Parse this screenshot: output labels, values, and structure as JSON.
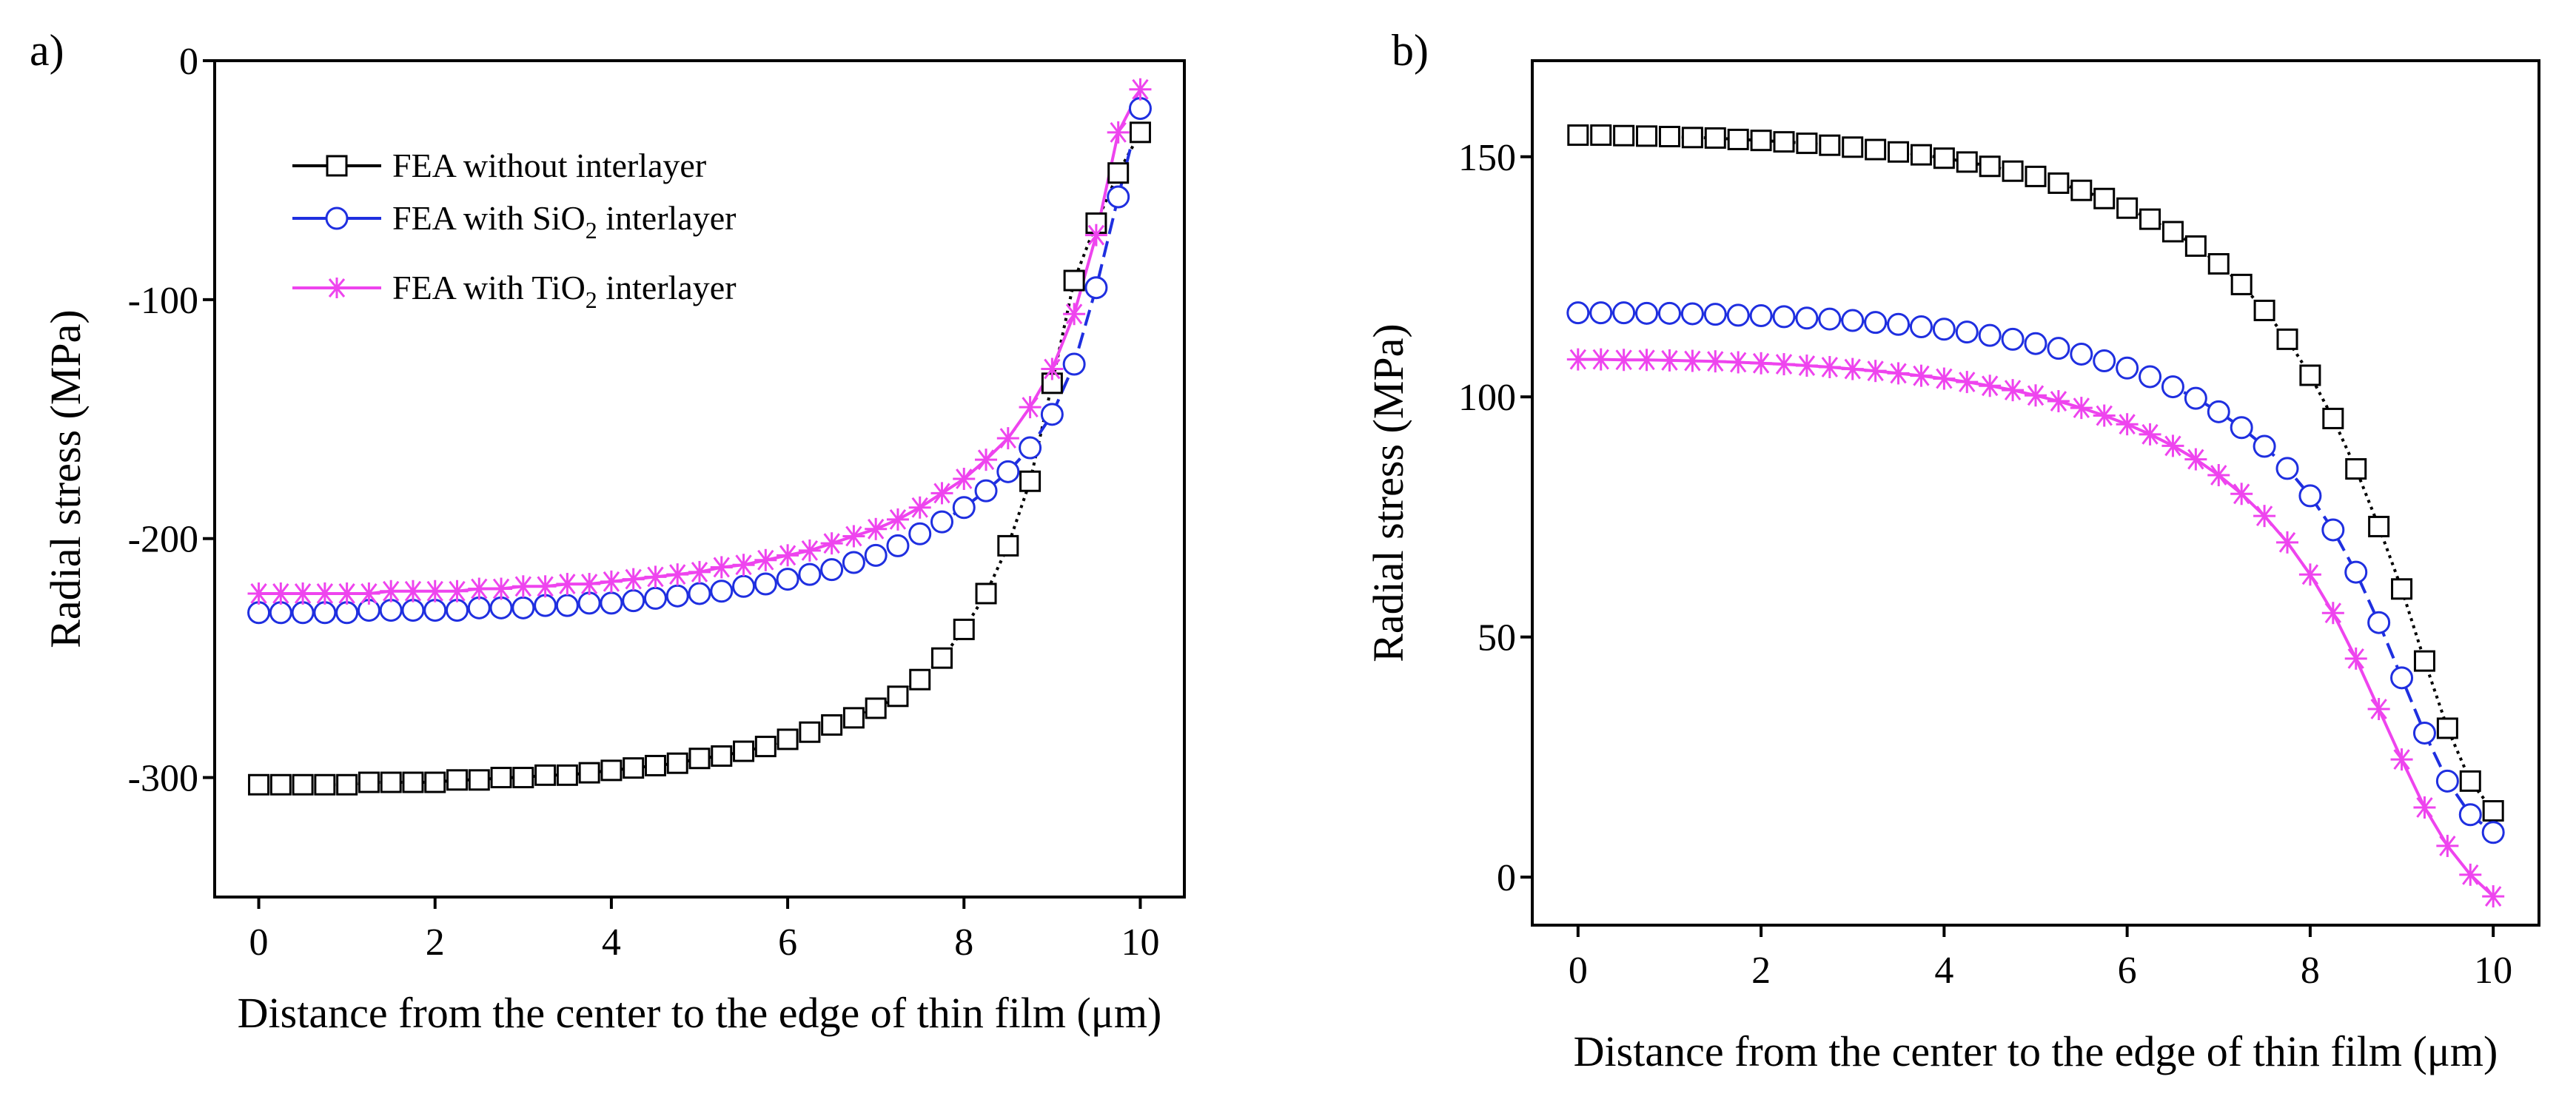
{
  "chart_data": [
    {
      "type": "line",
      "panel_label": "a)",
      "xlabel": "Distance from the center to the edge of thin film (μm)",
      "ylabel": "Radial stress (MPa)",
      "xlim": [
        -0.5,
        10.5
      ],
      "ylim": [
        -350,
        0
      ],
      "xticks": [
        0,
        2,
        4,
        6,
        8,
        10
      ],
      "yticks": [
        0,
        -100,
        -200,
        -300
      ],
      "xtick_labels": [
        "0",
        "2",
        "4",
        "6",
        "8",
        "10"
      ],
      "ytick_labels": [
        "0",
        "-100",
        "-200",
        "-300"
      ],
      "legend_position": "top-left",
      "x": [
        0,
        0.25,
        0.5,
        0.75,
        1,
        1.25,
        1.5,
        1.75,
        2,
        2.25,
        2.5,
        2.75,
        3,
        3.25,
        3.5,
        3.75,
        4,
        4.25,
        4.5,
        4.75,
        5,
        5.25,
        5.5,
        5.75,
        6,
        6.25,
        6.5,
        6.75,
        7,
        7.25,
        7.5,
        7.75,
        8,
        8.25,
        8.5,
        8.75,
        9,
        9.25,
        9.5,
        9.75,
        10
      ],
      "series": [
        {
          "name": "FEA without interlayer",
          "color": "#000000",
          "marker": "square",
          "line_style": "dotted",
          "values": [
            -303,
            -303,
            -303,
            -303,
            -303,
            -302,
            -302,
            -302,
            -302,
            -301,
            -301,
            -300,
            -300,
            -299,
            -299,
            -298,
            -297,
            -296,
            -295,
            -294,
            -292,
            -291,
            -289,
            -287,
            -284,
            -281,
            -278,
            -275,
            -271,
            -266,
            -259,
            -250,
            -238,
            -223,
            -203,
            -176,
            -135,
            -92,
            -68,
            -47,
            -30
          ]
        },
        {
          "name": "FEA with SiO",
          "name_sub": "2",
          "name_suffix": " interlayer",
          "color": "#1f2fe0",
          "marker": "circle",
          "line_style": "dashed",
          "values": [
            -231,
            -231,
            -231,
            -231,
            -231,
            -230,
            -230,
            -230,
            -230,
            -230,
            -229,
            -229,
            -229,
            -228,
            -228,
            -227,
            -227,
            -226,
            -225,
            -224,
            -223,
            -222,
            -220,
            -219,
            -217,
            -215,
            -213,
            -210,
            -207,
            -203,
            -198,
            -193,
            -187,
            -180,
            -172,
            -162,
            -148,
            -127,
            -95,
            -57,
            -20
          ]
        },
        {
          "name": "FEA with TiO",
          "name_sub": "2",
          "name_suffix": " interlayer",
          "color": "#ee44ee",
          "marker": "asterisk",
          "line_style": "solid",
          "values": [
            -223,
            -223,
            -223,
            -223,
            -223,
            -223,
            -222,
            -222,
            -222,
            -222,
            -221,
            -221,
            -220,
            -220,
            -219,
            -219,
            -218,
            -217,
            -216,
            -215,
            -214,
            -212,
            -211,
            -209,
            -207,
            -205,
            -202,
            -199,
            -196,
            -192,
            -187,
            -181,
            -175,
            -167,
            -158,
            -145,
            -129,
            -106,
            -73,
            -30,
            -12
          ]
        }
      ]
    },
    {
      "type": "line",
      "panel_label": "b)",
      "xlabel": "Distance from the center to the edge of thin film (μm)",
      "ylabel": "Radial stress (MPa)",
      "xlim": [
        -0.5,
        10.5
      ],
      "ylim": [
        -10,
        170
      ],
      "xticks": [
        0,
        2,
        4,
        6,
        8,
        10
      ],
      "yticks": [
        0,
        50,
        100,
        150
      ],
      "xtick_labels": [
        "0",
        "2",
        "4",
        "6",
        "8",
        "10"
      ],
      "ytick_labels": [
        "0",
        "50",
        "100",
        "150"
      ],
      "x": [
        0,
        0.25,
        0.5,
        0.75,
        1,
        1.25,
        1.5,
        1.75,
        2,
        2.25,
        2.5,
        2.75,
        3,
        3.25,
        3.5,
        3.75,
        4,
        4.25,
        4.5,
        4.75,
        5,
        5.25,
        5.5,
        5.75,
        6,
        6.25,
        6.5,
        6.75,
        7,
        7.25,
        7.5,
        7.75,
        8,
        8.25,
        8.5,
        8.75,
        9,
        9.25,
        9.5,
        9.75,
        10
      ],
      "series": [
        {
          "name": "FEA without interlayer",
          "color": "#000000",
          "marker": "square",
          "line_style": "dotted",
          "values": [
            154.5,
            154.5,
            154.4,
            154.3,
            154.2,
            154.0,
            153.9,
            153.6,
            153.4,
            153.1,
            152.8,
            152.4,
            152.0,
            151.5,
            151.0,
            150.4,
            149.7,
            148.9,
            148.0,
            147.0,
            145.9,
            144.5,
            143.0,
            141.3,
            139.3,
            137.0,
            134.4,
            131.4,
            127.7,
            123.4,
            118.0,
            112.0,
            104.5,
            95.5,
            85.0,
            73.0,
            60.0,
            45.0,
            31.0,
            20.0,
            13.8
          ]
        },
        {
          "name": "FEA with SiO",
          "name_sub": "2",
          "name_suffix": " interlayer",
          "color": "#1f2fe0",
          "marker": "circle",
          "line_style": "dashed",
          "values": [
            117.5,
            117.5,
            117.5,
            117.4,
            117.4,
            117.3,
            117.2,
            117.0,
            116.9,
            116.7,
            116.4,
            116.2,
            115.9,
            115.5,
            115.1,
            114.6,
            114.1,
            113.5,
            112.8,
            112.0,
            111.1,
            110.1,
            108.9,
            107.5,
            106.0,
            104.2,
            102.1,
            99.7,
            96.9,
            93.6,
            89.7,
            85.1,
            79.4,
            72.3,
            63.5,
            53.0,
            41.5,
            30.0,
            20.0,
            13.0,
            9.3
          ]
        },
        {
          "name": "FEA with TiO",
          "name_sub": "2",
          "name_suffix": " interlayer",
          "color": "#ee44ee",
          "marker": "asterisk",
          "line_style": "solid",
          "values": [
            107.8,
            107.8,
            107.7,
            107.7,
            107.6,
            107.5,
            107.4,
            107.2,
            107.0,
            106.8,
            106.5,
            106.2,
            105.8,
            105.4,
            104.9,
            104.4,
            103.8,
            103.1,
            102.3,
            101.4,
            100.3,
            99.1,
            97.7,
            96.1,
            94.3,
            92.2,
            89.8,
            87.0,
            83.7,
            79.8,
            75.2,
            69.7,
            63.0,
            55.0,
            45.5,
            35.0,
            24.5,
            14.5,
            6.5,
            0.5,
            -4.0
          ]
        }
      ]
    }
  ]
}
